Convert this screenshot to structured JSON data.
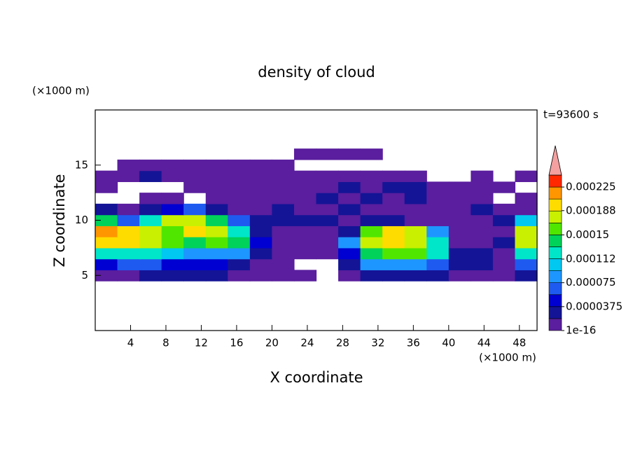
{
  "chart_data": {
    "type": "contour",
    "title": "density of cloud",
    "x_label": "X coordinate",
    "y_label": "Z coordinate",
    "x_unit": "(×1000 m)",
    "y_unit": "(×1000 m)",
    "annotation": "t=93600 s",
    "xlim": [
      0,
      50
    ],
    "ylim": [
      0,
      20
    ],
    "xticks": [
      4,
      8,
      12,
      16,
      20,
      24,
      28,
      32,
      36,
      40,
      44,
      48
    ],
    "yticks": [
      5,
      10,
      15
    ],
    "x": [
      1.25,
      3.75,
      6.25,
      8.75,
      11.25,
      13.75,
      16.25,
      18.75,
      21.25,
      23.75,
      26.25,
      28.75,
      31.25,
      33.75,
      36.25,
      38.75,
      41.25,
      43.75,
      46.25,
      48.75
    ],
    "y": [
      5,
      6,
      7,
      8,
      9,
      10,
      11,
      12,
      13,
      14,
      15,
      16
    ],
    "z": [
      [
        1e-05,
        1e-05,
        2e-05,
        2e-05,
        2e-05,
        2e-05,
        1e-05,
        1e-05,
        1e-05,
        1e-05,
        null,
        1e-05,
        3e-05,
        3e-05,
        3e-05,
        2e-05,
        1e-05,
        1e-05,
        1e-05,
        2e-05
      ],
      [
        5e-05,
        6e-05,
        6e-05,
        5e-05,
        4e-05,
        4e-05,
        3e-05,
        1e-05,
        1e-05,
        null,
        null,
        2e-05,
        8e-05,
        9e-05,
        9e-05,
        6e-05,
        2e-05,
        3e-05,
        1e-05,
        6e-05
      ],
      [
        0.00012,
        0.00013,
        0.00012,
        0.0001,
        9e-05,
        9e-05,
        8e-05,
        3e-05,
        1e-05,
        1e-05,
        1e-05,
        5e-05,
        0.00014,
        0.00015,
        0.00015,
        0.00012,
        3e-05,
        2e-05,
        1e-05,
        0.00012
      ],
      [
        0.00019,
        0.0002,
        0.00018,
        0.00015,
        0.00014,
        0.00015,
        0.00014,
        5e-05,
        1e-05,
        1e-05,
        1e-05,
        8e-05,
        0.00018,
        0.00019,
        0.00018,
        0.00013,
        1e-05,
        1e-05,
        2e-05,
        0.00017
      ],
      [
        0.00022,
        0.0002,
        0.00017,
        0.00016,
        0.00019,
        0.00018,
        0.00012,
        3e-05,
        1e-05,
        1e-05,
        1e-05,
        2e-05,
        0.00015,
        0.00019,
        0.00017,
        8e-05,
        1e-05,
        1e-05,
        1e-05,
        0.00018
      ],
      [
        0.00014,
        6e-05,
        0.00012,
        0.00017,
        0.00018,
        0.00014,
        6e-05,
        2e-05,
        3e-05,
        2e-05,
        3e-05,
        1e-05,
        2e-05,
        3e-05,
        1e-05,
        1e-05,
        1e-05,
        1e-05,
        2e-05,
        0.0001
      ],
      [
        2e-05,
        1e-05,
        2e-05,
        5e-05,
        6e-05,
        3e-05,
        1e-05,
        1e-05,
        2e-05,
        1e-05,
        1e-05,
        3e-05,
        1e-05,
        1e-05,
        1e-05,
        1e-05,
        1e-05,
        2e-05,
        1e-05,
        1e-05
      ],
      [
        null,
        null,
        1e-05,
        1e-05,
        null,
        1e-05,
        1e-05,
        1e-05,
        1e-05,
        1e-05,
        2e-05,
        1e-05,
        2e-05,
        1e-05,
        2e-05,
        1e-05,
        1e-05,
        1e-05,
        null,
        1e-05
      ],
      [
        1e-05,
        null,
        null,
        null,
        1e-05,
        1e-05,
        1e-05,
        1e-05,
        1e-05,
        1e-05,
        1e-05,
        2e-05,
        1e-05,
        3e-05,
        2e-05,
        1e-05,
        1e-05,
        1e-05,
        1e-05,
        null
      ],
      [
        1e-05,
        1e-05,
        2e-05,
        1e-05,
        1e-05,
        1e-05,
        1e-05,
        1e-05,
        1e-05,
        1e-05,
        1e-05,
        1e-05,
        1e-05,
        1e-05,
        1e-05,
        null,
        null,
        1e-05,
        null,
        1e-05
      ],
      [
        null,
        1e-05,
        1e-05,
        1e-05,
        1e-05,
        1e-05,
        1e-05,
        1e-05,
        1e-05,
        null,
        null,
        null,
        null,
        null,
        null,
        null,
        null,
        null,
        null,
        null
      ],
      [
        null,
        null,
        null,
        null,
        null,
        null,
        null,
        null,
        null,
        1e-05,
        1e-05,
        1e-05,
        1e-05,
        null,
        null,
        null,
        null,
        null,
        null,
        null
      ]
    ],
    "levels": [
      1e-16,
      1.875e-05,
      3.75e-05,
      5.625e-05,
      7.5e-05,
      9.375e-05,
      0.0001125,
      0.00013125,
      0.00015,
      0.00016875,
      0.0001875,
      0.00020625,
      0.000225,
      0.00024375
    ],
    "colors": [
      "#5a1e9e",
      "#141496",
      "#0000d2",
      "#1e5af0",
      "#1e96ff",
      "#00c8f0",
      "#00e6c8",
      "#00d25a",
      "#50e600",
      "#c8f000",
      "#ffdc00",
      "#ff9600",
      "#ff2800"
    ],
    "over_color": "#f4a0a0",
    "colorbar_ticks": [
      1e-16,
      3.75e-05,
      7.5e-05,
      0.000112,
      0.00015,
      0.000188,
      0.000225
    ]
  }
}
